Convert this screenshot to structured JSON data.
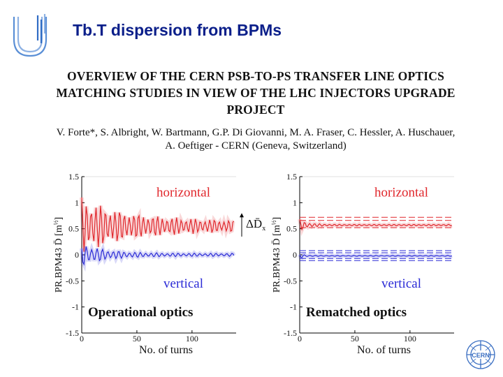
{
  "slide": {
    "title": "Tb.T dispersion from BPMs"
  },
  "paper": {
    "title_lines": [
      "OVERVIEW OF THE CERN PSB-TO-PS TRANSFER LINE OPTICS",
      "MATCHING STUDIES IN VIEW OF THE LHC INJECTORS UPGRADE",
      "PROJECT"
    ],
    "author_lines": [
      "V. Forte*, S. Albright, W. Bartmann, G.P. Di Giovanni, M. A. Fraser, C. Hessler, A. Huschauer,",
      "A. Oeftiger - CERN (Geneva, Switzerland)"
    ]
  },
  "logos": {
    "cern_text": "CERN"
  },
  "colors": {
    "title_blue": "#0b1f8a",
    "horizontal": "#e0262b",
    "vertical": "#2b2bd6",
    "logo_blue": "#5a8fd6"
  },
  "chart_data": [
    {
      "type": "line",
      "panel_label": "Operational optics",
      "ylabel": "PR.BPM43 D̄ [m",
      "ylabel_sup": "½",
      "ylabel_end": "]",
      "xlabel": "No. of turns",
      "xlim": [
        0,
        140
      ],
      "ylim": [
        -1.5,
        1.5
      ],
      "xticks": [
        {
          "v": 0,
          "label": "0"
        },
        {
          "v": 50,
          "label": "50"
        },
        {
          "v": 100,
          "label": "100"
        }
      ],
      "yticks": [
        {
          "v": 1.5,
          "label": "1.5"
        },
        {
          "v": 1,
          "label": "1"
        },
        {
          "v": 0.5,
          "label": "0.5"
        },
        {
          "v": 0,
          "label": "0"
        },
        {
          "v": -0.5,
          "label": "-0.5"
        },
        {
          "v": -1,
          "label": "-1"
        },
        {
          "v": -1.5,
          "label": "-1.5"
        }
      ],
      "annotation": "ΔD̄",
      "annotation_sub": "x",
      "series": [
        {
          "name": "horizontal",
          "label_y": 1.2,
          "mean": 0.55,
          "amp0": 0.45,
          "decay": 0.022,
          "period": 4.3,
          "amp_floor": 0.1,
          "color": "#e0262b"
        },
        {
          "name": "vertical",
          "label_y": -0.55,
          "mean": 0.0,
          "amp0": 0.2,
          "decay": 0.045,
          "period": 4.9,
          "amp_floor": 0.03,
          "color": "#2b2bd6"
        }
      ],
      "reference_lines": []
    },
    {
      "type": "line",
      "panel_label": "Rematched optics",
      "ylabel": "PR.BPM43 D̄ [m",
      "ylabel_sup": "½",
      "ylabel_end": "]",
      "xlabel": "No. of turns",
      "xlim": [
        0,
        140
      ],
      "ylim": [
        -1.5,
        1.5
      ],
      "xticks": [
        {
          "v": 0,
          "label": "0"
        },
        {
          "v": 50,
          "label": "50"
        },
        {
          "v": 100,
          "label": "100"
        }
      ],
      "yticks": [
        {
          "v": 1.5,
          "label": "1.5"
        },
        {
          "v": 1,
          "label": "1"
        },
        {
          "v": 0.5,
          "label": "0.5"
        },
        {
          "v": 0,
          "label": "0"
        },
        {
          "v": -0.5,
          "label": "-0.5"
        },
        {
          "v": -1,
          "label": "-1"
        },
        {
          "v": -1.5,
          "label": "-1.5"
        }
      ],
      "series": [
        {
          "name": "horizontal",
          "label_y": 1.2,
          "mean": 0.57,
          "amp0": 0.1,
          "decay": 0.12,
          "period": 4.5,
          "amp_floor": 0.015,
          "color": "#e0262b"
        },
        {
          "name": "vertical",
          "label_y": -0.55,
          "mean": -0.02,
          "amp0": 0.04,
          "decay": 0.2,
          "period": 5.0,
          "amp_floor": 0.008,
          "color": "#2b2bd6"
        }
      ],
      "reference_lines": [
        {
          "y": 0.72,
          "color": "#e0262b"
        },
        {
          "y": 0.66,
          "color": "#e0262b"
        },
        {
          "y": 0.52,
          "color": "#e0262b"
        },
        {
          "y": 0.08,
          "color": "#2b2bd6"
        },
        {
          "y": 0.04,
          "color": "#2b2bd6"
        },
        {
          "y": -0.07,
          "color": "#2b2bd6"
        },
        {
          "y": -0.11,
          "color": "#2b2bd6"
        }
      ]
    }
  ]
}
